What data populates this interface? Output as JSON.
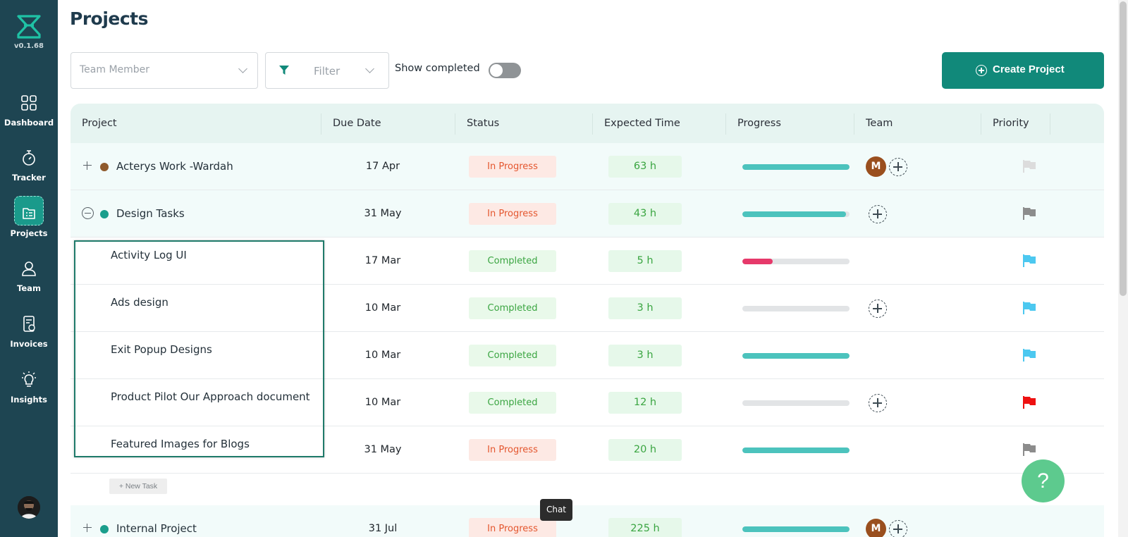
{
  "app": {
    "version": "v0.1.68"
  },
  "sidebar": {
    "items": [
      {
        "label": "Dashboard",
        "icon": "dashboard-icon"
      },
      {
        "label": "Tracker",
        "icon": "stopwatch-icon"
      },
      {
        "label": "Projects",
        "icon": "projects-icon",
        "active": true
      },
      {
        "label": "Team",
        "icon": "user-icon"
      },
      {
        "label": "Invoices",
        "icon": "invoice-icon"
      },
      {
        "label": "Insights",
        "icon": "lightbulb-icon"
      }
    ]
  },
  "header": {
    "title": "Projects"
  },
  "toolbar": {
    "team_member_placeholder": "Team Member",
    "filter_label": "Filter",
    "show_completed_label": "Show completed",
    "show_completed_value": false,
    "create_label": "Create Project"
  },
  "table": {
    "columns": [
      "Project",
      "Due Date",
      "Status",
      "Expected Time",
      "Progress",
      "Team",
      "Priority"
    ],
    "rows": [
      {
        "name": "Acterys Work -Wardah",
        "due": "17 Apr",
        "status": "In Progress",
        "expected": "63 h",
        "progress": 1.0,
        "member": "M",
        "priority_color": "#dcdcdc"
      },
      {
        "name": "Design Tasks",
        "due": "31 May",
        "status": "In Progress",
        "expected": "43 h",
        "progress": 0.97,
        "priority_color": "#8c8c8c"
      },
      {
        "name": "Activity Log UI",
        "due": "17 Mar",
        "status": "Completed",
        "expected": "5 h",
        "progress": 0.28,
        "priority_color": "#4cc8f0"
      },
      {
        "name": "Ads design",
        "due": "10 Mar",
        "status": "Completed",
        "expected": "3 h",
        "progress": 0.0,
        "priority_color": "#4cc8f0"
      },
      {
        "name": "Exit Popup Designs",
        "due": "10 Mar",
        "status": "Completed",
        "expected": "3 h",
        "progress": 1.0,
        "priority_color": "#4cc8f0"
      },
      {
        "name": "Product Pilot Our Approach document",
        "due": "10 Mar",
        "status": "Completed",
        "expected": "12 h",
        "progress": 0.0,
        "priority_color": "#ee1111"
      },
      {
        "name": "Featured Images for Blogs",
        "due": "31 May",
        "status": "In Progress",
        "expected": "20 h",
        "progress": 1.0,
        "priority_color": "#8c8c8c"
      }
    ],
    "new_task_label": "+ New Task",
    "next_row": {
      "name": "Internal Project",
      "due": "31 Jul",
      "status": "In Progress",
      "expected": "225 h",
      "member": "M"
    }
  },
  "colors": {
    "sidebar": "#1e4552",
    "accent": "#11897a",
    "progress": "#4cc3bd",
    "progress_low": "#e6396a"
  },
  "tooltip": {
    "chat": "Chat"
  },
  "help": {
    "label": "?"
  }
}
